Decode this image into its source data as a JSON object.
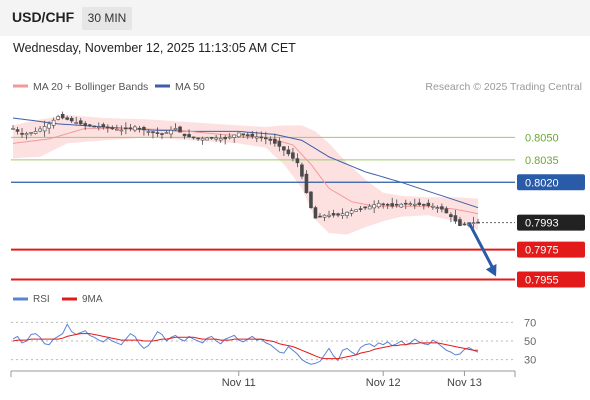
{
  "header": {
    "symbol": "USD/CHF",
    "timeframe": "30 MIN"
  },
  "timestamp": "Wednesday, November 12, 2025 11:13:05 AM CET",
  "legend": {
    "ma20_bb": "MA 20 + Bollinger Bands",
    "ma50": "MA 50",
    "credit": "Research © 2025 Trading Central"
  },
  "rsi_legend": {
    "rsi": "RSI",
    "ma9": "9MA"
  },
  "colors": {
    "candle": "#4a4a4a",
    "bollinger": "#fde1e1",
    "ma20": "#f19a9a",
    "ma50": "#3e5fa8",
    "resistance": "#9acd60",
    "pivot": "#2a5ba8",
    "support": "#e31a1a",
    "arrow": "#2a5ba8",
    "rsi": "#5b82d6",
    "rsi_ma": "#e31a1a"
  },
  "chart_data": [
    {
      "type": "candlestick",
      "title": "",
      "y_axis_side": "right",
      "ylim": [
        0.7948,
        0.8075
      ],
      "x_ticks": [
        "Nov 11",
        "Nov 12",
        "Nov 13"
      ],
      "x_tick_positions": [
        50,
        82,
        100
      ],
      "n_bars": 104,
      "levels": [
        {
          "value": 0.805,
          "label": "0.8050",
          "kind": "resistance"
        },
        {
          "value": 0.8035,
          "label": "0.8035",
          "kind": "resistance"
        },
        {
          "value": 0.802,
          "label": "0.8020",
          "kind": "pivot"
        },
        {
          "value": 0.7993,
          "label": "0.7993",
          "kind": "last-price"
        },
        {
          "value": 0.7975,
          "label": "0.7975",
          "kind": "support"
        },
        {
          "value": 0.7955,
          "label": "0.7955",
          "kind": "support"
        }
      ],
      "close_path": [
        [
          0,
          0.8056
        ],
        [
          2,
          0.8052
        ],
        [
          5,
          0.8054
        ],
        [
          8,
          0.8059
        ],
        [
          10,
          0.8064
        ],
        [
          13,
          0.8061
        ],
        [
          16,
          0.8058
        ],
        [
          20,
          0.8057
        ],
        [
          24,
          0.8055
        ],
        [
          27,
          0.8057
        ],
        [
          30,
          0.8054
        ],
        [
          33,
          0.8052
        ],
        [
          36,
          0.8056
        ],
        [
          38,
          0.8051
        ],
        [
          41,
          0.8049
        ],
        [
          44,
          0.805
        ],
        [
          47,
          0.8049
        ],
        [
          50,
          0.8053
        ],
        [
          52,
          0.8051
        ],
        [
          55,
          0.805
        ],
        [
          57,
          0.8048
        ],
        [
          59,
          0.8044
        ],
        [
          61,
          0.8039
        ],
        [
          63,
          0.8033
        ],
        [
          64,
          0.8024
        ],
        [
          65,
          0.8013
        ],
        [
          66,
          0.8003
        ],
        [
          67,
          0.7996
        ],
        [
          69,
          0.7998
        ],
        [
          72,
          0.7998
        ],
        [
          75,
          0.8001
        ],
        [
          78,
          0.8003
        ],
        [
          81,
          0.8006
        ],
        [
          84,
          0.8004
        ],
        [
          87,
          0.8006
        ],
        [
          90,
          0.8005
        ],
        [
          93,
          0.8004
        ],
        [
          95,
          0.8002
        ],
        [
          97,
          0.7997
        ],
        [
          99,
          0.7991
        ],
        [
          101,
          0.7993
        ],
        [
          103,
          0.7993
        ]
      ],
      "ma20_path": [
        [
          0,
          0.8046
        ],
        [
          8,
          0.8049
        ],
        [
          16,
          0.8056
        ],
        [
          26,
          0.8056
        ],
        [
          36,
          0.8055
        ],
        [
          46,
          0.8052
        ],
        [
          56,
          0.805
        ],
        [
          62,
          0.8045
        ],
        [
          66,
          0.8032
        ],
        [
          70,
          0.8016
        ],
        [
          75,
          0.8007
        ],
        [
          80,
          0.8004
        ],
        [
          85,
          0.8004
        ],
        [
          92,
          0.8004
        ],
        [
          98,
          0.8002
        ],
        [
          103,
          0.7999
        ]
      ],
      "ma50_path": [
        [
          0,
          0.8063
        ],
        [
          10,
          0.8059
        ],
        [
          20,
          0.8057
        ],
        [
          30,
          0.8055
        ],
        [
          40,
          0.8054
        ],
        [
          50,
          0.8054
        ],
        [
          58,
          0.8052
        ],
        [
          64,
          0.8048
        ],
        [
          70,
          0.8037
        ],
        [
          78,
          0.8027
        ],
        [
          86,
          0.802
        ],
        [
          94,
          0.8012
        ],
        [
          100,
          0.8006
        ],
        [
          103,
          0.8003
        ]
      ],
      "bb_upper_path": [
        [
          0,
          0.8058
        ],
        [
          6,
          0.8062
        ],
        [
          12,
          0.8065
        ],
        [
          20,
          0.8063
        ],
        [
          30,
          0.8062
        ],
        [
          40,
          0.806
        ],
        [
          50,
          0.8058
        ],
        [
          56,
          0.8057
        ],
        [
          60,
          0.8058
        ],
        [
          64,
          0.8058
        ],
        [
          67,
          0.8054
        ],
        [
          70,
          0.8046
        ],
        [
          74,
          0.8033
        ],
        [
          78,
          0.8022
        ],
        [
          82,
          0.8013
        ],
        [
          86,
          0.8011
        ],
        [
          92,
          0.801
        ],
        [
          98,
          0.801
        ],
        [
          103,
          0.8009
        ]
      ],
      "bb_lower_path": [
        [
          0,
          0.8036
        ],
        [
          6,
          0.8037
        ],
        [
          12,
          0.8046
        ],
        [
          20,
          0.8048
        ],
        [
          30,
          0.805
        ],
        [
          40,
          0.8048
        ],
        [
          50,
          0.8046
        ],
        [
          56,
          0.8043
        ],
        [
          60,
          0.8032
        ],
        [
          64,
          0.8016
        ],
        [
          67,
          0.7995
        ],
        [
          70,
          0.7986
        ],
        [
          74,
          0.7985
        ],
        [
          78,
          0.799
        ],
        [
          82,
          0.7994
        ],
        [
          86,
          0.7997
        ],
        [
          92,
          0.7998
        ],
        [
          98,
          0.7994
        ],
        [
          103,
          0.7988
        ]
      ],
      "forecast_arrow": {
        "from": [
          101,
          0.7993
        ],
        "to": [
          107,
          0.7957
        ]
      }
    },
    {
      "type": "line",
      "title": "",
      "ylim": [
        22,
        78
      ],
      "y_ticks": [
        70,
        50,
        30
      ],
      "series": [
        {
          "name": "RSI",
          "values": [
            52,
            55,
            48,
            50,
            57,
            58,
            54,
            47,
            46,
            52,
            55,
            58,
            68,
            60,
            57,
            59,
            61,
            56,
            54,
            51,
            49,
            53,
            50,
            48,
            46,
            52,
            58,
            55,
            47,
            42,
            45,
            52,
            60,
            57,
            50,
            54,
            56,
            52,
            50,
            55,
            52,
            50,
            48,
            53,
            55,
            50,
            47,
            52,
            54,
            56,
            51,
            49,
            52,
            55,
            51,
            52,
            48,
            46,
            42,
            38,
            37,
            44,
            40,
            36,
            30,
            27,
            25,
            26,
            28,
            35,
            42,
            34,
            29,
            40,
            42,
            38,
            35,
            43,
            46,
            47,
            44,
            48,
            46,
            49,
            45,
            47,
            50,
            46,
            48,
            52,
            49,
            47,
            46,
            51,
            48,
            44,
            40,
            38,
            35,
            36,
            41,
            43,
            40,
            38
          ]
        },
        {
          "name": "9MA",
          "values": [
            50,
            51,
            51,
            51,
            52,
            52,
            52,
            52,
            52,
            52,
            52,
            53,
            55,
            56,
            57,
            58,
            58,
            58,
            57,
            56,
            55,
            54,
            53,
            52,
            51,
            51,
            51,
            51,
            51,
            50,
            50,
            50,
            51,
            52,
            52,
            53,
            54,
            54,
            54,
            54,
            54,
            53,
            52,
            52,
            52,
            52,
            51,
            51,
            51,
            52,
            52,
            52,
            52,
            52,
            52,
            52,
            51,
            50,
            49,
            47,
            46,
            45,
            44,
            42,
            40,
            38,
            36,
            34,
            32,
            31,
            31,
            31,
            31,
            32,
            33,
            34,
            35,
            37,
            38,
            39,
            41,
            42,
            43,
            44,
            45,
            45,
            46,
            46,
            47,
            47,
            48,
            48,
            48,
            48,
            48,
            47,
            46,
            45,
            44,
            43,
            42,
            41,
            40,
            40
          ]
        }
      ]
    }
  ]
}
